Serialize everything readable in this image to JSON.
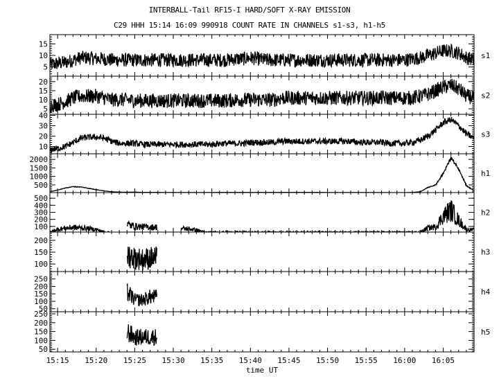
{
  "chart_data": {
    "type": "line",
    "title": "INTERBALL-Tail RF15-I HARD/SOFT X-RAY EMISSION",
    "subtitle": "C29 HHH 15:14 16:09 990918  COUNT RATE IN CHANNELS s1-s3, h1-h5",
    "xlabel": "time UT",
    "xlim": [
      "15:14",
      "16:09"
    ],
    "xticks": [
      "15:15",
      "15:20",
      "15:25",
      "15:30",
      "15:35",
      "15:40",
      "15:45",
      "15:50",
      "15:55",
      "16:00",
      "16:05"
    ],
    "grid": false,
    "times": [
      "15:14",
      "15:15",
      "15:16",
      "15:17",
      "15:18",
      "15:19",
      "15:20",
      "15:21",
      "15:22",
      "15:23",
      "15:24",
      "15:25",
      "15:26",
      "15:27",
      "15:28",
      "15:29",
      "15:30",
      "15:31",
      "15:32",
      "15:33",
      "15:34",
      "15:35",
      "15:36",
      "15:37",
      "15:38",
      "15:39",
      "15:40",
      "15:41",
      "15:42",
      "15:43",
      "15:44",
      "15:45",
      "15:46",
      "15:47",
      "15:48",
      "15:49",
      "15:50",
      "15:51",
      "15:52",
      "15:53",
      "15:54",
      "15:55",
      "15:56",
      "15:57",
      "15:58",
      "15:59",
      "16:00",
      "16:01",
      "16:02",
      "16:03",
      "16:04",
      "16:05",
      "16:06",
      "16:07",
      "16:08",
      "16:09"
    ],
    "series": [
      {
        "name": "s1",
        "ylim": [
          1,
          19
        ],
        "yticks": [
          5,
          10,
          15
        ],
        "minor": 1,
        "noise": 3,
        "relative": false,
        "values": [
          6,
          6.5,
          7,
          8,
          9,
          9,
          8.5,
          8.5,
          8,
          8,
          8,
          8,
          8,
          8,
          8,
          8,
          8,
          8,
          8,
          8,
          8,
          8,
          8,
          8,
          8.5,
          8.5,
          9,
          8.5,
          8,
          8,
          8,
          8,
          8,
          8,
          8,
          8,
          8,
          8,
          8,
          8,
          8,
          8,
          8,
          8,
          8,
          8,
          8,
          8.5,
          9,
          10,
          11,
          12,
          12,
          11,
          9,
          8
        ]
      },
      {
        "name": "s2",
        "ylim": [
          2,
          23
        ],
        "yticks": [
          5,
          10,
          15,
          20
        ],
        "minor": 1,
        "noise": 4,
        "relative": false,
        "values": [
          7,
          7.5,
          9,
          11,
          12,
          12,
          12,
          11,
          10,
          10,
          10,
          9.5,
          9.5,
          9.5,
          9.5,
          9.5,
          9.5,
          9.5,
          9.5,
          9.5,
          9.5,
          9.5,
          9.5,
          9.5,
          10,
          10,
          10,
          10,
          10,
          10,
          11,
          11,
          11,
          11,
          11,
          11,
          11,
          11,
          11,
          11,
          11,
          11,
          11,
          11,
          11,
          11,
          11,
          11,
          12,
          13,
          15,
          17,
          18,
          16,
          12,
          11
        ]
      },
      {
        "name": "s3",
        "ylim": [
          3,
          41
        ],
        "yticks": [
          10,
          20,
          30,
          40
        ],
        "minor": 2,
        "noise": 3,
        "relative": false,
        "values": [
          7,
          8,
          10,
          14,
          18,
          19,
          19,
          18,
          15,
          13,
          13,
          13,
          12,
          12,
          12,
          12,
          12,
          12,
          12,
          12,
          12,
          12,
          13,
          13,
          13,
          13,
          14,
          14,
          14,
          14,
          15,
          15,
          15,
          15,
          15,
          15,
          15,
          15,
          15,
          15,
          14,
          14,
          14,
          14,
          13,
          13,
          13,
          14,
          16,
          20,
          26,
          33,
          36,
          30,
          22,
          18
        ]
      },
      {
        "name": "h1",
        "ylim": [
          50,
          2330
        ],
        "yticks": [
          500,
          1000,
          1500,
          2000
        ],
        "minor": 100,
        "noise": 0.05,
        "relative": true,
        "values": [
          100,
          200,
          320,
          400,
          380,
          300,
          220,
          150,
          100,
          80,
          70,
          80,
          60,
          60,
          60,
          55,
          55,
          55,
          55,
          55,
          55,
          55,
          60,
          60,
          60,
          60,
          60,
          60,
          60,
          60,
          60,
          60,
          60,
          60,
          60,
          60,
          55,
          55,
          55,
          55,
          55,
          55,
          55,
          55,
          50,
          50,
          50,
          60,
          100,
          350,
          500,
          1200,
          2100,
          1400,
          450,
          150
        ]
      },
      {
        "name": "h2",
        "ylim": [
          20,
          580
        ],
        "yticks": [
          100,
          200,
          300,
          400,
          500
        ],
        "minor": 100,
        "noise": 0.5,
        "relative": true,
        "values": [
          20,
          60,
          75,
          85,
          80,
          70,
          55,
          20,
          null,
          null,
          130,
          100,
          95,
          90,
          null,
          null,
          null,
          70,
          65,
          50,
          20,
          20,
          20,
          20,
          20,
          20,
          20,
          20,
          20,
          20,
          20,
          20,
          20,
          20,
          20,
          20,
          20,
          20,
          20,
          20,
          20,
          20,
          20,
          20,
          20,
          20,
          20,
          20,
          20,
          80,
          90,
          250,
          330,
          180,
          60,
          50
        ]
      },
      {
        "name": "h3",
        "ylim": [
          68,
          235
        ],
        "yticks": [
          100,
          150,
          200
        ],
        "minor": 10,
        "noise": 0.4,
        "relative": true,
        "values": [
          null,
          null,
          null,
          null,
          null,
          null,
          null,
          null,
          null,
          null,
          140,
          125,
          120,
          125,
          null,
          null,
          null,
          null,
          null,
          null,
          null,
          null,
          null,
          null,
          null,
          null,
          null,
          null,
          null,
          null,
          null,
          null,
          null,
          null,
          null,
          null,
          null,
          null,
          null,
          null,
          null,
          null,
          null,
          null,
          null,
          null,
          null,
          null,
          null,
          null,
          null,
          null,
          null,
          null,
          null,
          null
        ]
      },
      {
        "name": "h4",
        "ylim": [
          30,
          300
        ],
        "yticks": [
          50,
          100,
          150,
          200,
          250
        ],
        "minor": 10,
        "noise": 0.4,
        "relative": true,
        "values": [
          null,
          null,
          null,
          null,
          null,
          null,
          null,
          null,
          null,
          null,
          160,
          110,
          110,
          130,
          null,
          null,
          null,
          null,
          null,
          null,
          null,
          null,
          null,
          null,
          null,
          null,
          null,
          null,
          null,
          null,
          null,
          null,
          null,
          null,
          null,
          null,
          null,
          null,
          null,
          null,
          null,
          null,
          null,
          null,
          null,
          null,
          null,
          null,
          null,
          null,
          null,
          null,
          null,
          null,
          null,
          null
        ]
      },
      {
        "name": "h5",
        "ylim": [
          35,
          262
        ],
        "yticks": [
          50,
          100,
          150,
          200,
          250
        ],
        "minor": 10,
        "noise": 0.4,
        "relative": true,
        "values": [
          null,
          null,
          null,
          null,
          null,
          null,
          null,
          null,
          null,
          null,
          150,
          115,
          120,
          120,
          null,
          null,
          null,
          null,
          null,
          null,
          null,
          null,
          null,
          null,
          null,
          null,
          null,
          null,
          null,
          null,
          null,
          null,
          null,
          null,
          null,
          null,
          null,
          null,
          null,
          null,
          null,
          null,
          null,
          null,
          null,
          null,
          null,
          null,
          null,
          null,
          null,
          null,
          null,
          null,
          null,
          null
        ]
      }
    ],
    "colors": {
      "line": "#000000",
      "background": "#ffffff"
    }
  }
}
